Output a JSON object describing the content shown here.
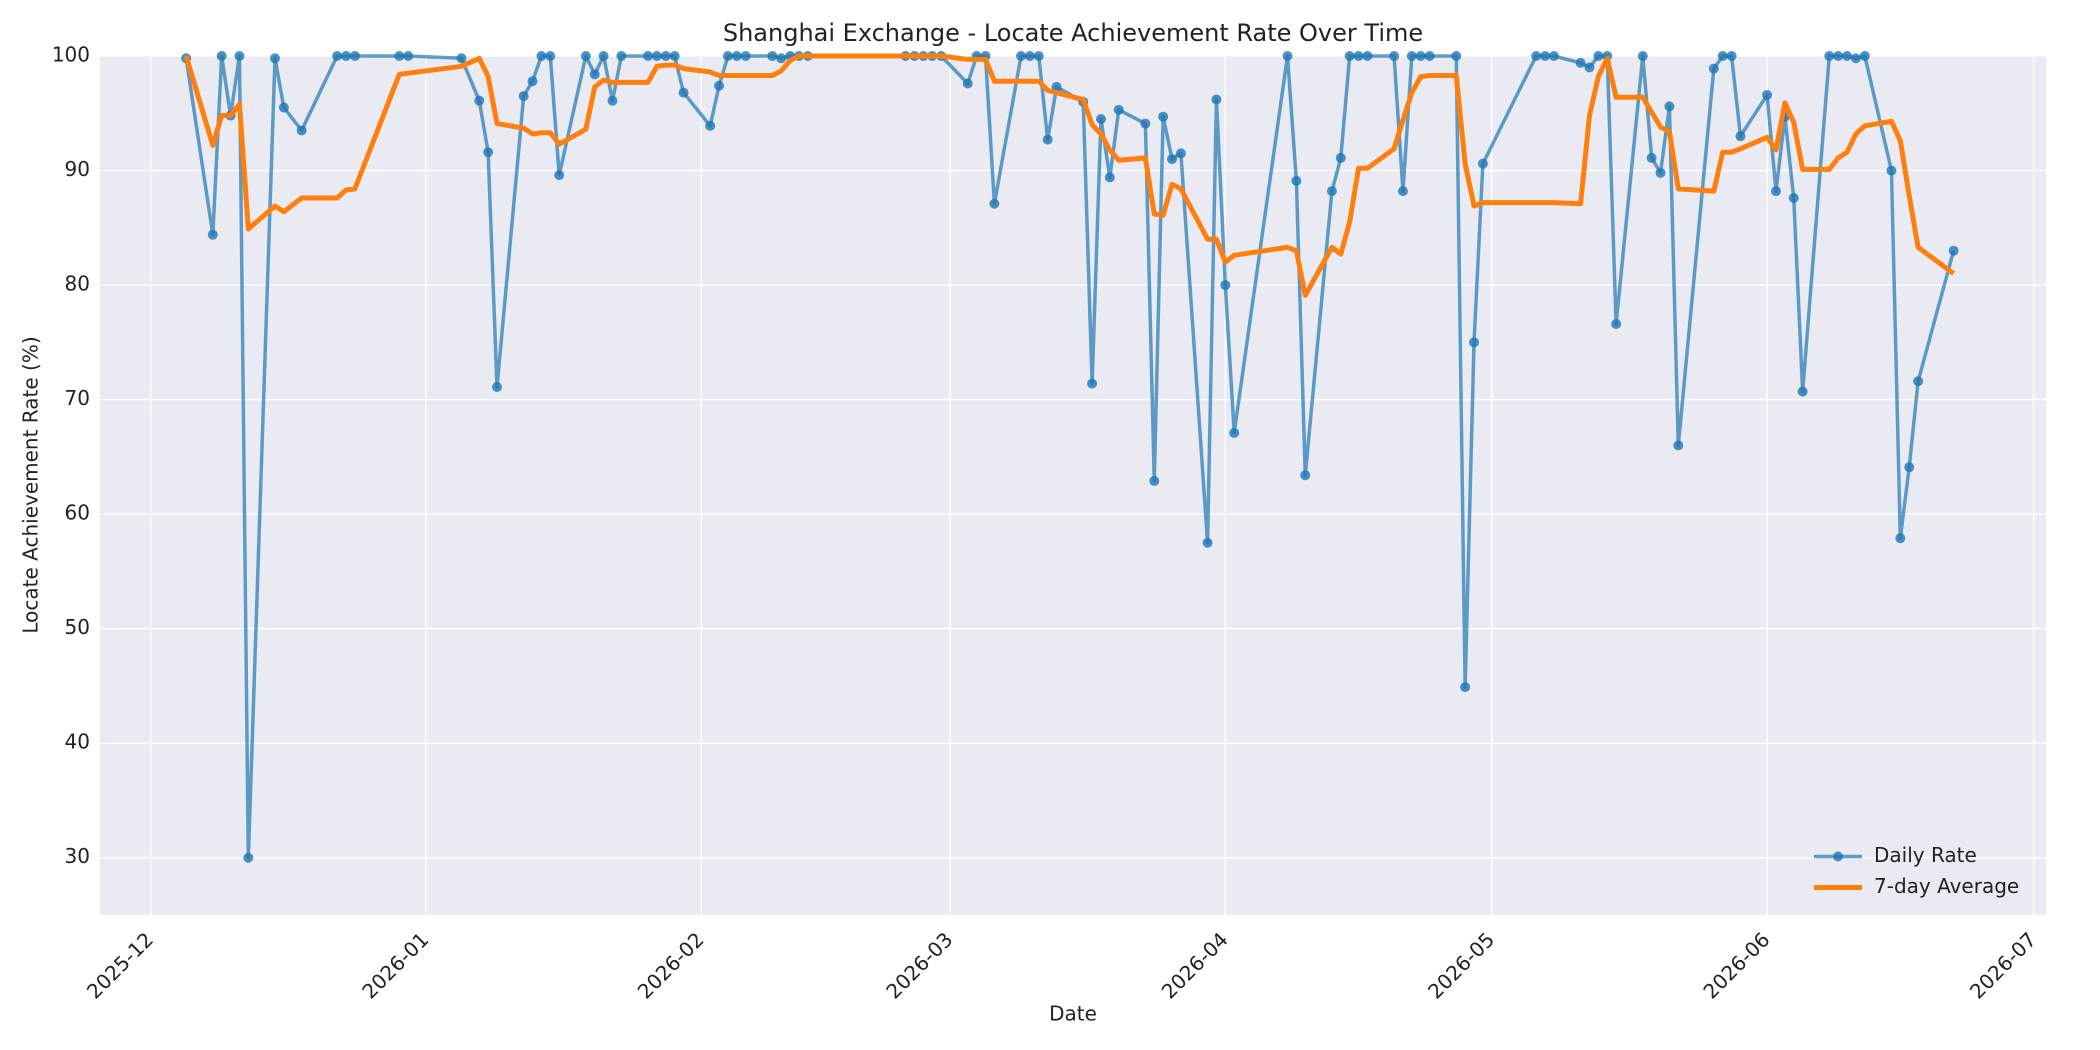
{
  "chart_data": {
    "type": "line",
    "title": "Shanghai Exchange - Locate Achievement Rate Over Time",
    "xlabel": "Date",
    "ylabel": "Locate Achievement Rate (%)",
    "x": [
      4,
      7,
      8,
      9,
      10,
      11,
      14,
      15,
      17,
      21,
      22,
      23,
      28,
      29,
      35,
      37,
      38,
      39,
      42,
      43,
      44,
      45,
      46,
      49,
      50,
      51,
      52,
      53,
      56,
      57,
      58,
      59,
      60,
      63,
      64,
      65,
      66,
      67,
      70,
      71,
      72,
      73,
      74,
      85,
      86,
      87,
      88,
      89,
      92,
      93,
      94,
      95,
      98,
      99,
      100,
      101,
      102,
      105,
      106,
      107,
      108,
      109,
      112,
      113,
      114,
      115,
      116,
      119,
      120,
      121,
      122,
      128,
      129,
      130,
      133,
      134,
      135,
      136,
      137,
      140,
      141,
      142,
      143,
      144,
      147,
      148,
      149,
      150,
      156,
      157,
      158,
      161,
      162,
      163,
      164,
      165,
      168,
      169,
      170,
      171,
      172,
      176,
      177,
      178,
      179,
      182,
      183,
      184,
      185,
      186,
      189,
      190,
      191,
      192,
      193,
      196,
      197,
      198,
      199,
      203
    ],
    "series": [
      {
        "name": "Daily Rate",
        "color": "#1f77b4",
        "markers": true,
        "values": [
          99.8,
          84.4,
          100,
          94.8,
          100,
          30,
          99.8,
          95.5,
          93.5,
          100,
          100,
          100,
          100,
          100,
          99.8,
          96.1,
          91.6,
          71.1,
          96.5,
          97.8,
          100,
          100,
          89.6,
          100,
          98.4,
          100,
          96.1,
          100,
          100,
          100,
          100,
          100,
          96.8,
          93.9,
          97.4,
          100,
          100,
          100,
          100,
          99.8,
          100,
          100,
          100,
          100,
          100,
          100,
          100,
          100,
          97.6,
          100,
          100,
          87.1,
          100,
          100,
          100,
          92.7,
          97.3,
          96.0,
          71.4,
          94.5,
          89.4,
          95.3,
          94.1,
          62.9,
          94.7,
          91.0,
          91.5,
          57.5,
          96.2,
          80.0,
          67.1,
          100,
          89.1,
          63.4,
          88.2,
          91.1,
          100,
          100,
          100,
          100,
          88.2,
          100,
          100,
          100,
          100,
          44.9,
          75.0,
          90.6,
          100,
          100,
          100,
          99.4,
          99.0,
          100,
          100,
          76.6,
          100,
          91.1,
          89.8,
          95.6,
          66.0,
          98.9,
          100,
          100,
          93.0,
          96.6,
          88.2,
          94.7,
          87.6,
          70.7,
          100,
          100,
          100,
          99.8,
          100,
          90.0,
          57.9,
          64.1,
          71.6,
          83.0
        ]
      },
      {
        "name": "7-day Average",
        "color": "#ff7f0e",
        "markers": false,
        "values": [
          100,
          92.2,
          94.8,
          94.8,
          95.8,
          84.9,
          86.9,
          86.4,
          87.6,
          87.6,
          88.3,
          88.4,
          98.4,
          98.5,
          99.1,
          99.8,
          98.2,
          94.1,
          93.7,
          93.2,
          93.3,
          93.3,
          92.3,
          93.6,
          97.3,
          97.9,
          97.7,
          97.7,
          97.7,
          99.1,
          99.2,
          99.2,
          98.9,
          98.6,
          98.3,
          98.3,
          98.3,
          98.3,
          98.3,
          98.7,
          99.6,
          100,
          100,
          100,
          100,
          100,
          100,
          100,
          99.7,
          99.7,
          99.7,
          97.8,
          97.8,
          97.8,
          97.8,
          97.0,
          96.8,
          96.2,
          94.0,
          93.2,
          91.8,
          90.9,
          91.1,
          86.2,
          86.1,
          88.8,
          88.4,
          84.0,
          84.0,
          82.0,
          82.6,
          83.3,
          83.0,
          79.1,
          83.3,
          82.7,
          85.5,
          90.2,
          90.2,
          91.9,
          94.4,
          96.8,
          98.2,
          98.3,
          98.3,
          90.6,
          86.9,
          87.2,
          87.2,
          87.2,
          87.2,
          87.1,
          94.8,
          98.2,
          99.8,
          96.4,
          96.4,
          95.1,
          93.8,
          93.4,
          88.4,
          88.2,
          91.6,
          91.6,
          91.9,
          92.9,
          91.8,
          95.9,
          94.2,
          90.1,
          90.1,
          91.1,
          91.6,
          93.2,
          93.9,
          94.3,
          92.6,
          87.8,
          83.3,
          81.0
        ]
      }
    ],
    "xlim": [
      -5.7,
      213.4
    ],
    "xticks": [
      {
        "value": 0,
        "label": "2025-12"
      },
      {
        "value": 31,
        "label": "2026-01"
      },
      {
        "value": 62,
        "label": "2026-02"
      },
      {
        "value": 90,
        "label": "2026-03"
      },
      {
        "value": 121,
        "label": "2026-04"
      },
      {
        "value": 151,
        "label": "2026-05"
      },
      {
        "value": 182,
        "label": "2026-06"
      },
      {
        "value": 212,
        "label": "2026-07"
      }
    ],
    "ylim": [
      25,
      100
    ],
    "yticks": [
      30,
      40,
      50,
      60,
      70,
      80,
      90,
      100
    ],
    "grid": true,
    "legend": "lower right"
  }
}
